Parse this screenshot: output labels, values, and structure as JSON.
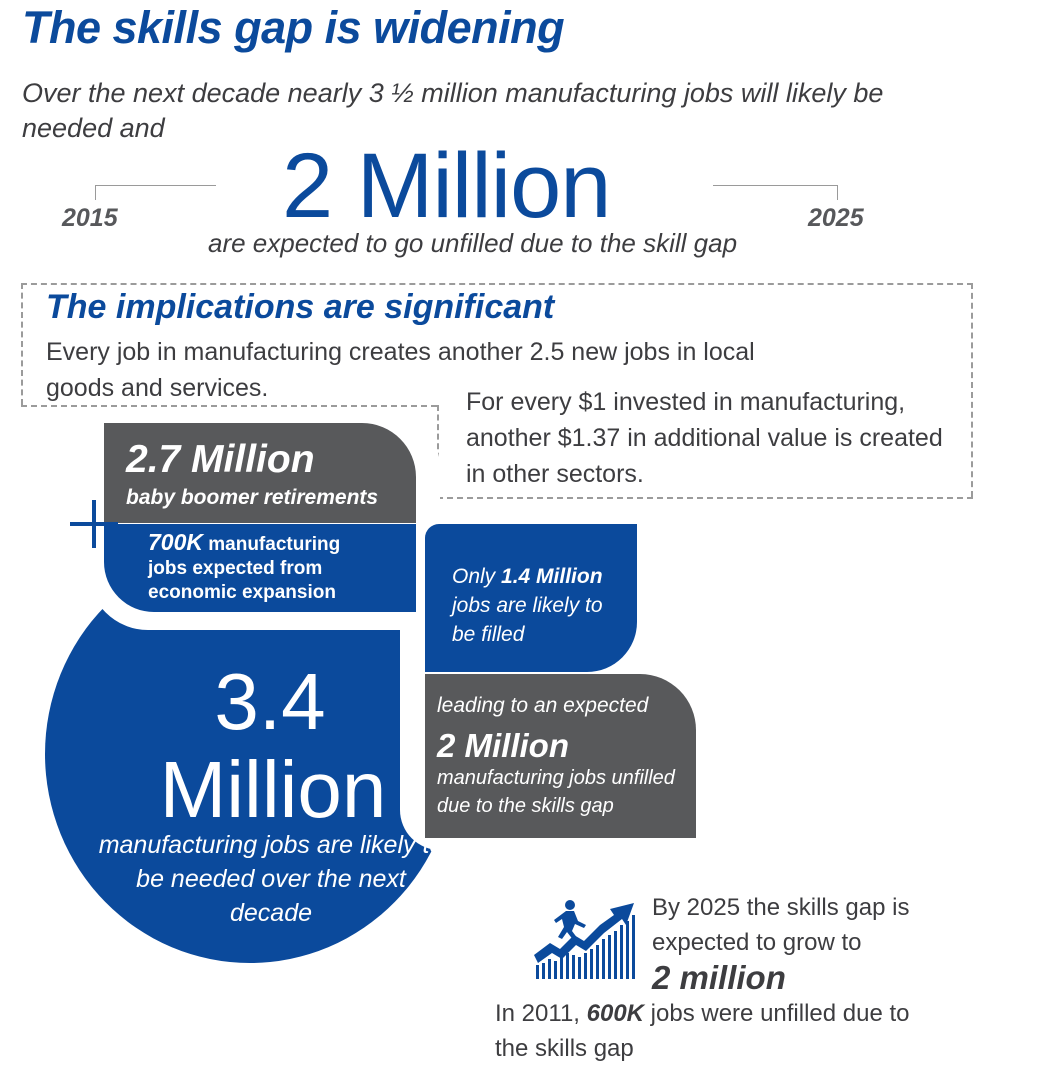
{
  "header": {
    "title": "The skills gap is widening",
    "intro": "Over the next decade nearly 3 ½ million manufacturing jobs will likely be needed and"
  },
  "headline": {
    "big_number": "2 Million",
    "subline": "are expected to go unfilled due to the skill gap",
    "year_start": "2015",
    "year_end": "2025"
  },
  "implications": {
    "heading": "The implications are significant",
    "text_1": "Every job in manufacturing creates another 2.5 new jobs in local goods and services.",
    "text_2": "For every $1 invested in manufacturing, another $1.37 in additional value is created in other sectors."
  },
  "retirements": {
    "number": "2.7 Million",
    "label": "baby boomer retirements"
  },
  "expansion": {
    "number": "700K",
    "label_1": " manufacturing",
    "label_2": "jobs expected from",
    "label_3": "economic expansion"
  },
  "needed": {
    "number": "3.4",
    "unit": "Million",
    "description": "manufacturing jobs are likely to be needed over the next decade"
  },
  "filled": {
    "prefix": "Only ",
    "number": "1.4 Million",
    "suffix": " jobs are likely to be filled"
  },
  "unfilled": {
    "lead": "leading to an expected",
    "number": "2 Million",
    "description": "manufacturing jobs unfilled due to the skills gap"
  },
  "trend": {
    "icon": "rising-chart-runner-icon",
    "text": "By 2025 the skills gap is expected to grow to",
    "number": "2 million"
  },
  "history": {
    "prefix": "In 2011, ",
    "number": "600K",
    "suffix": " jobs were unfilled due to the skills gap"
  },
  "colors": {
    "brand_blue": "#0b4a9c",
    "dark_grey": "#58595b",
    "text_grey": "#3d3d40",
    "dash_grey": "#9b9b9b"
  }
}
